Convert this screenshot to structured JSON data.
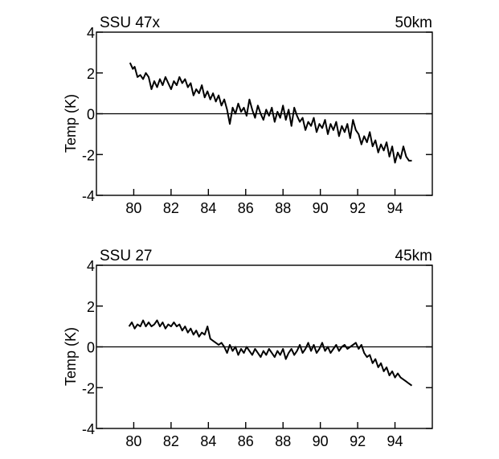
{
  "chart_data": [
    {
      "type": "line",
      "title": "SSU 47x",
      "altitude": "50km",
      "ylabel": "Temp  (K)",
      "xlim": [
        78,
        96
      ],
      "ylim": [
        -4,
        4
      ],
      "xticks": [
        80,
        82,
        84,
        86,
        88,
        90,
        92,
        94
      ],
      "yticks": [
        -4,
        -2,
        0,
        2,
        4
      ],
      "zero_line": true,
      "series": [
        {
          "x": [
            79.8,
            79.95,
            80.05,
            80.2,
            80.35,
            80.5,
            80.65,
            80.8,
            80.95,
            81.1,
            81.25,
            81.4,
            81.55,
            81.7,
            81.85,
            82.0,
            82.15,
            82.3,
            82.45,
            82.6,
            82.75,
            82.9,
            83.05,
            83.2,
            83.35,
            83.5,
            83.65,
            83.8,
            83.95,
            84.1,
            84.25,
            84.4,
            84.55,
            84.7,
            84.85,
            85.0,
            85.15,
            85.3,
            85.45,
            85.6,
            85.75,
            85.9,
            86.05,
            86.2,
            86.35,
            86.5,
            86.65,
            86.8,
            86.95,
            87.1,
            87.25,
            87.4,
            87.55,
            87.7,
            87.85,
            88.0,
            88.15,
            88.3,
            88.45,
            88.6,
            88.75,
            88.9,
            89.05,
            89.2,
            89.35,
            89.5,
            89.65,
            89.8,
            89.95,
            90.1,
            90.25,
            90.4,
            90.55,
            90.7,
            90.85,
            91.0,
            91.15,
            91.3,
            91.45,
            91.6,
            91.75,
            91.9,
            92.05,
            92.2,
            92.35,
            92.5,
            92.65,
            92.8,
            92.95,
            93.1,
            93.25,
            93.4,
            93.55,
            93.7,
            93.85,
            94.0,
            94.15,
            94.3,
            94.45,
            94.6,
            94.75,
            94.9
          ],
          "y": [
            2.5,
            2.2,
            2.3,
            1.8,
            1.9,
            1.7,
            2.0,
            1.8,
            1.2,
            1.6,
            1.3,
            1.7,
            1.4,
            1.8,
            1.5,
            1.2,
            1.6,
            1.4,
            1.8,
            1.5,
            1.7,
            1.3,
            1.5,
            0.9,
            1.2,
            1.0,
            1.4,
            0.8,
            1.1,
            0.7,
            1.0,
            0.6,
            0.9,
            0.4,
            0.7,
            0.2,
            -0.5,
            0.3,
            0.0,
            0.5,
            0.1,
            0.3,
            -0.1,
            0.7,
            0.2,
            -0.2,
            0.4,
            0.0,
            -0.3,
            0.2,
            -0.1,
            0.3,
            -0.4,
            0.1,
            -0.2,
            0.4,
            -0.3,
            0.2,
            -0.6,
            0.3,
            -0.1,
            -0.4,
            -0.2,
            -0.8,
            -0.4,
            -0.6,
            -0.2,
            -0.9,
            -0.5,
            -0.7,
            -0.3,
            -1.0,
            -0.5,
            -0.8,
            -0.4,
            -1.1,
            -0.6,
            -0.9,
            -0.5,
            -1.2,
            -0.3,
            -0.8,
            -1.0,
            -1.5,
            -1.1,
            -1.4,
            -0.9,
            -1.6,
            -1.3,
            -1.9,
            -1.5,
            -1.8,
            -1.4,
            -2.1,
            -1.6,
            -2.4,
            -1.9,
            -2.2,
            -1.6,
            -2.1,
            -2.3,
            -2.3
          ]
        }
      ]
    },
    {
      "type": "line",
      "title": "SSU 27",
      "altitude": "45km",
      "ylabel": "Temp  (K)",
      "xlim": [
        78,
        96
      ],
      "ylim": [
        -4,
        4
      ],
      "xticks": [
        80,
        82,
        84,
        86,
        88,
        90,
        92,
        94
      ],
      "yticks": [
        -4,
        -2,
        0,
        2,
        4
      ],
      "zero_line": true,
      "series": [
        {
          "x": [
            79.75,
            79.9,
            80.05,
            80.2,
            80.35,
            80.5,
            80.65,
            80.8,
            80.95,
            81.1,
            81.25,
            81.4,
            81.55,
            81.7,
            81.85,
            82.0,
            82.15,
            82.3,
            82.45,
            82.6,
            82.75,
            82.9,
            83.05,
            83.2,
            83.35,
            83.5,
            83.65,
            83.8,
            83.95,
            84.1,
            84.25,
            84.4,
            84.55,
            84.7,
            84.85,
            85.0,
            85.15,
            85.3,
            85.45,
            85.6,
            85.75,
            85.9,
            86.05,
            86.2,
            86.35,
            86.5,
            86.65,
            86.8,
            86.95,
            87.1,
            87.25,
            87.4,
            87.55,
            87.7,
            87.85,
            88.0,
            88.15,
            88.3,
            88.45,
            88.6,
            88.75,
            88.9,
            89.05,
            89.2,
            89.35,
            89.5,
            89.65,
            89.8,
            89.95,
            90.1,
            90.25,
            90.4,
            90.55,
            90.7,
            90.85,
            91.0,
            91.15,
            91.3,
            91.45,
            91.6,
            91.75,
            91.9,
            92.05,
            92.2,
            92.35,
            92.5,
            92.65,
            92.8,
            92.95,
            93.1,
            93.25,
            93.4,
            93.55,
            93.7,
            93.85,
            94.0,
            94.15,
            94.3,
            94.45,
            94.6,
            94.75,
            94.9
          ],
          "y": [
            1.0,
            1.2,
            0.9,
            1.1,
            1.0,
            1.3,
            1.0,
            1.2,
            1.0,
            1.1,
            1.3,
            1.0,
            1.2,
            0.9,
            1.1,
            1.0,
            1.2,
            1.0,
            1.1,
            0.8,
            1.0,
            0.7,
            0.9,
            0.6,
            0.8,
            0.5,
            0.7,
            0.6,
            1.0,
            0.4,
            0.3,
            0.2,
            0.1,
            0.2,
            0.0,
            -0.3,
            0.1,
            -0.2,
            0.0,
            -0.4,
            -0.1,
            -0.3,
            0.0,
            -0.2,
            -0.4,
            -0.1,
            -0.3,
            -0.5,
            -0.2,
            -0.4,
            -0.1,
            -0.3,
            -0.5,
            -0.2,
            -0.4,
            -0.1,
            -0.6,
            -0.3,
            -0.1,
            -0.4,
            -0.2,
            0.1,
            -0.3,
            -0.1,
            0.2,
            -0.2,
            0.1,
            -0.3,
            -0.1,
            0.2,
            -0.2,
            0.0,
            -0.3,
            -0.1,
            0.1,
            -0.2,
            0.0,
            0.1,
            -0.1,
            0.0,
            0.1,
            0.2,
            -0.1,
            0.1,
            -0.3,
            -0.5,
            -0.4,
            -0.8,
            -0.6,
            -1.0,
            -0.8,
            -1.2,
            -1.0,
            -1.4,
            -1.2,
            -1.5,
            -1.3,
            -1.5,
            -1.6,
            -1.7,
            -1.8,
            -1.9
          ]
        }
      ]
    }
  ]
}
